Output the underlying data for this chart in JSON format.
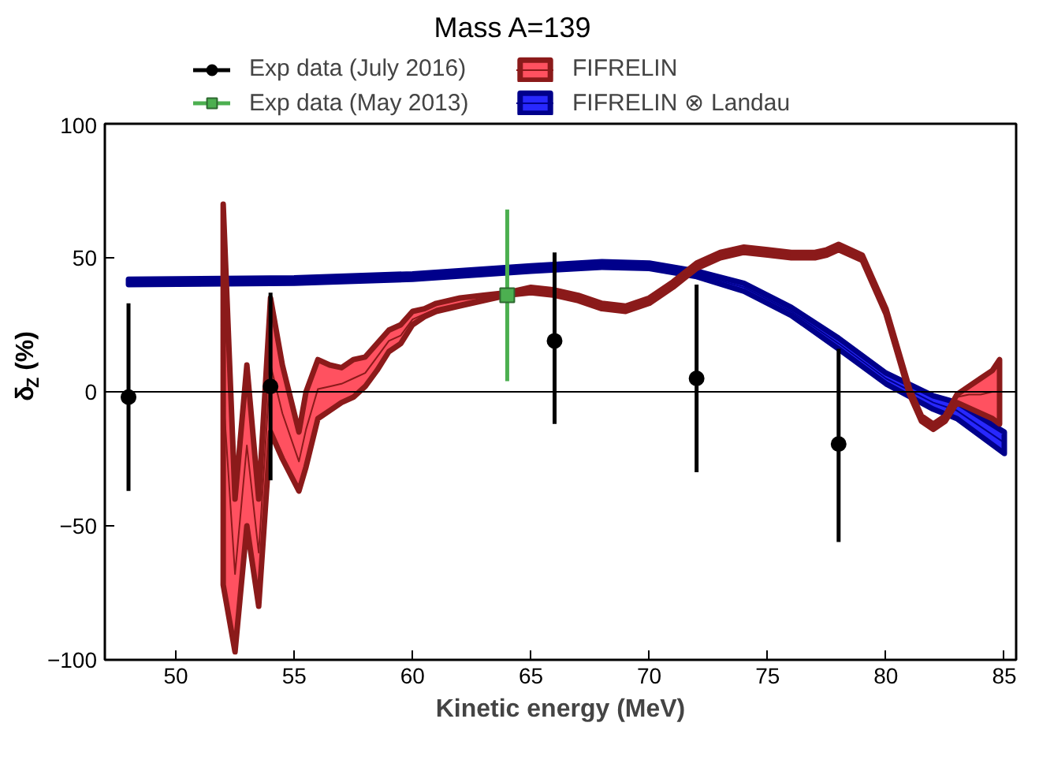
{
  "chart_data": {
    "type": "line",
    "title": "Mass A=139",
    "xlabel": "Kinetic energy (MeV)",
    "ylabel": "δ$_{Z}$ (%)",
    "xlim": [
      47,
      85.5
    ],
    "ylim": [
      -100,
      100
    ],
    "xticks": [
      50,
      55,
      60,
      65,
      70,
      75,
      80,
      85
    ],
    "yticks": [
      -100,
      -50,
      0,
      50,
      100
    ],
    "grid": false,
    "legend": "top",
    "ref_lines": [
      {
        "axis": "y",
        "value": 0,
        "color": "#000000"
      }
    ],
    "series": [
      {
        "name": "Exp data (July 2016)",
        "type": "scatter",
        "marker": "circle",
        "color": "#000000",
        "x": [
          48,
          54,
          66,
          72,
          78
        ],
        "values": [
          -2,
          2,
          19,
          5,
          -19.5
        ],
        "errors": [
          [
            -37,
            33
          ],
          [
            -33,
            37
          ],
          [
            -12,
            52
          ],
          [
            -30,
            40
          ],
          [
            -56,
            16
          ]
        ]
      },
      {
        "name": "Exp data (May 2013)",
        "type": "scatter",
        "marker": "square",
        "color": "#4caf50",
        "x": [
          64
        ],
        "values": [
          36
        ],
        "errors": [
          [
            4,
            68
          ]
        ]
      },
      {
        "name": "FIFRELIN",
        "color": "#8b1a1a",
        "x": [
          52.0,
          52.5,
          53.0,
          53.5,
          54.0,
          54.5,
          55.2,
          55.5,
          56,
          56.5,
          57,
          57.5,
          58,
          58.5,
          59,
          59.5,
          60,
          60.5,
          61,
          62,
          63,
          64,
          65,
          66,
          67,
          68,
          69,
          70,
          71,
          72,
          73,
          74,
          75,
          76,
          77,
          77.5,
          78,
          79,
          79.5,
          80,
          80.5,
          81,
          81.5,
          82,
          82.5,
          83,
          83.5,
          84,
          84.5,
          84.8
        ],
        "values": [
          -1,
          -68,
          -20,
          -60,
          10,
          -8,
          -26,
          -14,
          1,
          2,
          3,
          5,
          7,
          13,
          19,
          21,
          27,
          29,
          31,
          33,
          35,
          36,
          38,
          37,
          35,
          32,
          31,
          34,
          40,
          47,
          51,
          53,
          52,
          51,
          51,
          52,
          54,
          50,
          40,
          30,
          15,
          0,
          -10,
          -13,
          -10,
          -2,
          -1,
          -1,
          0,
          0
        ],
        "lower": [
          -72,
          -97,
          -50,
          -80,
          -15,
          -25,
          -37,
          -28,
          -10,
          -7,
          -4,
          -2,
          2,
          8,
          15,
          18,
          25,
          28,
          30,
          32,
          34,
          36,
          37,
          36,
          34,
          31,
          30,
          33,
          39,
          46,
          50,
          52,
          51,
          50,
          50,
          51,
          53,
          49,
          39,
          29,
          14,
          -1,
          -11,
          -14,
          -11,
          -4,
          -6,
          -8,
          -10,
          -12
        ],
        "upper": [
          70,
          -40,
          10,
          -40,
          35,
          10,
          -15,
          0,
          12,
          10,
          9,
          12,
          13,
          18,
          23,
          25,
          30,
          31,
          33,
          35,
          36,
          37,
          39,
          38,
          36,
          33,
          32,
          35,
          41,
          48,
          52,
          54,
          53,
          52,
          52,
          53,
          55,
          51,
          41,
          31,
          16,
          1,
          -9,
          -12,
          -9,
          -1,
          2,
          5,
          8,
          12
        ]
      },
      {
        "name": "FIFRELIN ⊗ Landau",
        "color": "#00008b",
        "x": [
          48,
          55,
          60,
          65,
          68,
          70,
          72,
          74,
          76,
          78,
          80,
          82,
          83,
          85
        ],
        "values": [
          41,
          41.5,
          43,
          46,
          47.5,
          47,
          44,
          39,
          30,
          18,
          5,
          -4,
          -7,
          -19
        ],
        "lower": [
          40,
          40.5,
          42,
          45,
          46.5,
          46,
          43,
          37.5,
          28.5,
          16,
          3,
          -6.5,
          -10,
          -23
        ],
        "upper": [
          42,
          42.5,
          44,
          47,
          48.5,
          48,
          45,
          40.5,
          31.5,
          20,
          7,
          -1.5,
          -4,
          -15
        ]
      }
    ]
  }
}
